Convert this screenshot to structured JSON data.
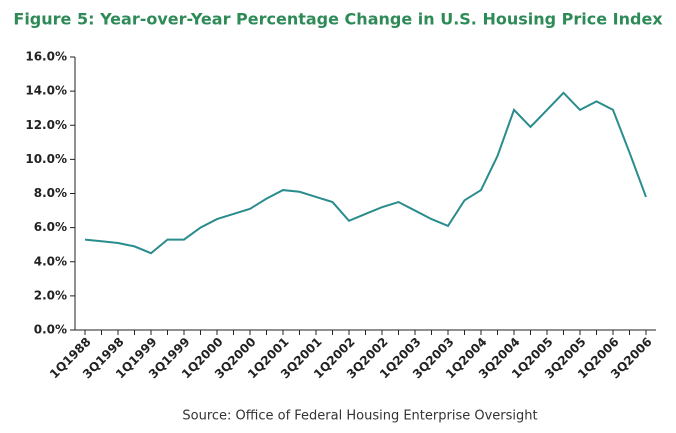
{
  "chart_data": {
    "type": "line",
    "title": "Figure 5: Year-over-Year Percentage Change in U.S. Housing Price Index",
    "source": "Source: Office of Federal Housing Enterprise Oversight",
    "categories": [
      "1Q1988",
      null,
      "3Q1998",
      null,
      "1Q1999",
      null,
      "3Q1999",
      null,
      "1Q2000",
      null,
      "3Q2000",
      null,
      "1Q2001",
      null,
      "3Q2001",
      null,
      "1Q2002",
      null,
      "3Q2002",
      null,
      "1Q2003",
      null,
      "3Q2003",
      null,
      "1Q2004",
      null,
      "3Q2004",
      null,
      "1Q2005",
      null,
      "3Q2005",
      null,
      "1Q2006",
      null,
      "3Q2006"
    ],
    "values": [
      5.3,
      5.2,
      5.1,
      4.9,
      4.5,
      5.3,
      5.3,
      6.0,
      6.5,
      6.8,
      7.1,
      7.7,
      8.2,
      8.1,
      7.8,
      7.5,
      6.4,
      6.8,
      7.2,
      7.5,
      7.0,
      6.5,
      6.1,
      7.6,
      8.2,
      10.2,
      12.9,
      11.9,
      12.9,
      13.9,
      12.9,
      13.4,
      12.9,
      10.4,
      7.8
    ],
    "color": "#2a8c8c",
    "ylim": [
      0,
      16
    ],
    "yticks": [
      {
        "value": 0,
        "label": "0.0%"
      },
      {
        "value": 2,
        "label": "2.0%"
      },
      {
        "value": 4,
        "label": "4.0%"
      },
      {
        "value": 6,
        "label": "6.0%"
      },
      {
        "value": 8,
        "label": "8.0%"
      },
      {
        "value": 10,
        "label": "10.0%"
      },
      {
        "value": 12,
        "label": "12.0%"
      },
      {
        "value": 14,
        "label": "14.0%"
      },
      {
        "value": 16,
        "label": "16.0%"
      }
    ]
  }
}
